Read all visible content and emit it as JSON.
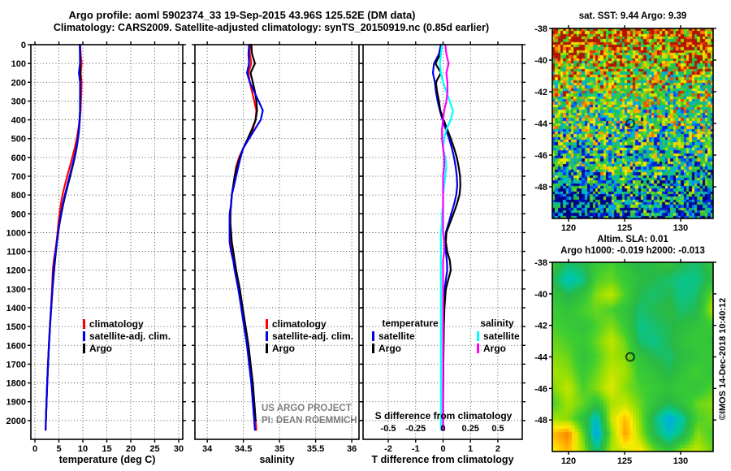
{
  "header": {
    "title_line1": "Argo profile: aoml 5902374_33 19-Sep-2015 43.96S 125.52E (DM data)",
    "title_line2": "Climatology: CARS2009. Satellite-adjusted climatology: synTS_20150919.nc (0.85d earlier)"
  },
  "colors": {
    "climatology": "#ff0000",
    "satellite_adj": "#0000ee",
    "argo": "#000000",
    "salinity_satellite": "#00ffff",
    "salinity_argo": "#ff00ff",
    "watermark": "#7d7d7d",
    "background": "#ffffff"
  },
  "watermark": {
    "line1": "US ARGO PROJECT",
    "line2": "PI: DEAN ROEMMICH"
  },
  "copyright": "©IMOS 14-Dec-2018 10:40:12",
  "legends": {
    "profile": [
      {
        "label": "climatology"
      },
      {
        "label": "satellite-adj. clim."
      },
      {
        "label": "Argo"
      }
    ],
    "difference": {
      "temperature_header": "temperature",
      "salinity_header": "salinity",
      "t_items": [
        {
          "label": "satellite"
        },
        {
          "label": "Argo"
        }
      ],
      "s_items": [
        {
          "label": "satellite"
        },
        {
          "label": "Argo"
        }
      ]
    }
  },
  "chart_data": [
    {
      "id": "temperature_profile",
      "type": "line",
      "xlabel": "temperature (deg C)",
      "x_range": [
        -0.85,
        30.85
      ],
      "x_ticks": [
        0,
        5,
        10,
        15,
        20,
        25,
        30
      ],
      "depth_range": [
        0,
        2100
      ],
      "depth_ticks": [
        0,
        100,
        200,
        300,
        400,
        500,
        600,
        700,
        800,
        900,
        1000,
        1100,
        1200,
        1300,
        1400,
        1500,
        1600,
        1700,
        1800,
        1900,
        2000
      ],
      "depths": [
        0,
        50,
        100,
        150,
        200,
        250,
        300,
        350,
        400,
        450,
        500,
        550,
        600,
        650,
        700,
        750,
        800,
        850,
        900,
        950,
        1000,
        1050,
        1100,
        1150,
        1200,
        1300,
        1400,
        1500,
        1600,
        1700,
        1800,
        1900,
        2000,
        2050
      ],
      "series": [
        {
          "name": "climatology",
          "color": "#ff0000",
          "values": [
            9.44,
            9.54,
            9.74,
            9.55,
            9.73,
            9.68,
            9.6,
            9.52,
            9.33,
            9.07,
            8.72,
            8.3,
            7.8,
            7.28,
            6.73,
            6.22,
            5.75,
            5.4,
            5.12,
            4.9,
            4.73,
            4.5,
            4.23,
            3.93,
            3.72,
            3.58,
            3.35,
            3.12,
            2.91,
            2.73,
            2.56,
            2.42,
            2.28,
            2.24
          ]
        },
        {
          "name": "Argo",
          "color": "#000000",
          "values": [
            9.39,
            9.44,
            9.46,
            9.47,
            9.47,
            9.46,
            9.45,
            9.42,
            9.35,
            9.22,
            9.0,
            8.7,
            8.3,
            7.85,
            7.35,
            6.85,
            6.35,
            5.9,
            5.5,
            5.15,
            4.85,
            4.6,
            4.38,
            4.18,
            4.0,
            3.68,
            3.4,
            3.15,
            2.93,
            2.74,
            2.57,
            2.42,
            2.28,
            null
          ]
        },
        {
          "name": "satellite-adj. clim.",
          "color": "#0000ee",
          "values": [
            9.36,
            9.39,
            9.41,
            9.18,
            9.43,
            9.42,
            9.4,
            9.4,
            9.31,
            9.17,
            8.94,
            8.62,
            8.2,
            7.74,
            7.23,
            6.74,
            6.23,
            5.8,
            5.42,
            5.1,
            4.83,
            4.58,
            4.33,
            4.07,
            3.87,
            3.64,
            3.38,
            3.14,
            2.92,
            2.74,
            2.56,
            2.42,
            2.28,
            2.24
          ]
        }
      ]
    },
    {
      "id": "salinity_profile",
      "type": "line",
      "xlabel": "salinity",
      "x_range": [
        33.83,
        36.1
      ],
      "x_ticks": [
        34,
        34.5,
        35,
        35.5,
        36
      ],
      "depth_range": [
        0,
        2100
      ],
      "depth_ticks": [
        0,
        100,
        200,
        300,
        400,
        500,
        600,
        700,
        800,
        900,
        1000,
        1100,
        1200,
        1300,
        1400,
        1500,
        1600,
        1700,
        1800,
        1900,
        2000
      ],
      "depths": [
        0,
        50,
        100,
        150,
        200,
        250,
        300,
        350,
        400,
        450,
        500,
        550,
        600,
        650,
        700,
        750,
        800,
        850,
        900,
        950,
        1000,
        1050,
        1100,
        1150,
        1200,
        1300,
        1400,
        1500,
        1600,
        1700,
        1800,
        1900,
        2000,
        2050
      ],
      "series": [
        {
          "name": "climatology",
          "color": "#ff0000",
          "values": [
            34.59,
            34.59,
            34.61,
            34.57,
            34.59,
            34.62,
            34.65,
            34.68,
            34.67,
            34.63,
            34.57,
            34.5,
            34.44,
            34.4,
            34.38,
            34.36,
            34.34,
            34.33,
            34.32,
            34.32,
            34.33,
            34.33,
            34.35,
            34.38,
            34.4,
            34.45,
            34.49,
            34.53,
            34.57,
            34.6,
            34.63,
            34.65,
            34.67,
            34.68
          ]
        },
        {
          "name": "Argo",
          "color": "#000000",
          "values": [
            34.61,
            34.62,
            34.66,
            34.6,
            34.63,
            34.66,
            34.68,
            34.69,
            34.67,
            34.62,
            34.56,
            34.5,
            34.45,
            34.41,
            34.38,
            34.36,
            34.34,
            34.33,
            34.32,
            34.32,
            34.33,
            34.34,
            34.36,
            34.38,
            34.4,
            34.45,
            34.49,
            34.53,
            34.57,
            34.6,
            34.63,
            34.65,
            34.67,
            null
          ]
        },
        {
          "name": "satellite-adj. clim.",
          "color": "#0000ee",
          "values": [
            34.58,
            34.57,
            34.58,
            34.55,
            34.59,
            34.65,
            34.71,
            34.77,
            34.74,
            34.66,
            34.58,
            34.5,
            34.46,
            34.43,
            34.4,
            34.37,
            34.34,
            34.33,
            34.31,
            34.31,
            34.31,
            34.31,
            34.33,
            34.36,
            34.38,
            34.43,
            34.47,
            34.51,
            34.55,
            34.58,
            34.61,
            34.63,
            34.65,
            34.66
          ]
        }
      ]
    },
    {
      "id": "difference_profile",
      "type": "line",
      "xlabel": "T difference from climatology",
      "x_range": [
        -2.92,
        2.89
      ],
      "x_ticks": [
        -2,
        -1,
        0,
        1,
        2
      ],
      "s_scale": {
        "label": "S difference from climatology",
        "ticks": [
          -0.5,
          -0.25,
          0,
          0.25,
          0.5
        ],
        "t_units_per_s_unit": 4
      },
      "depth_range": [
        0,
        2100
      ],
      "depth_ticks": [
        0,
        100,
        200,
        300,
        400,
        500,
        600,
        700,
        800,
        900,
        1000,
        1100,
        1200,
        1300,
        1400,
        1500,
        1600,
        1700,
        1800,
        1900,
        2000
      ],
      "depths": [
        0,
        50,
        100,
        150,
        200,
        250,
        300,
        350,
        400,
        450,
        500,
        550,
        600,
        650,
        700,
        750,
        800,
        850,
        900,
        950,
        1000,
        1050,
        1100,
        1150,
        1200,
        1300,
        1400,
        1500,
        1600,
        1700,
        1800,
        1900,
        2000,
        2050
      ],
      "series": [
        {
          "name": "temperature satellite",
          "color": "#0000ee",
          "scale": 1,
          "values": [
            -0.08,
            -0.15,
            -0.33,
            -0.37,
            -0.3,
            -0.26,
            -0.2,
            -0.12,
            -0.02,
            0.1,
            0.22,
            0.32,
            0.4,
            0.46,
            0.5,
            0.52,
            0.48,
            0.4,
            0.3,
            0.2,
            0.1,
            0.08,
            0.1,
            0.14,
            0.15,
            0.06,
            0.03,
            0.02,
            0.01,
            0.01,
            0.0,
            0.0,
            0.0,
            0.0
          ]
        },
        {
          "name": "temperature Argo",
          "color": "#000000",
          "scale": 1,
          "values": [
            -0.05,
            -0.1,
            -0.28,
            -0.08,
            -0.26,
            -0.22,
            -0.15,
            -0.1,
            0.02,
            0.15,
            0.28,
            0.4,
            0.5,
            0.57,
            0.62,
            0.63,
            0.6,
            0.5,
            0.38,
            0.25,
            0.12,
            0.1,
            0.15,
            0.25,
            0.28,
            0.1,
            0.05,
            0.03,
            0.02,
            0.01,
            0.01,
            0.0,
            0.0,
            null
          ]
        },
        {
          "name": "salinity satellite",
          "color": "#00ffff",
          "scale": 4,
          "values": [
            -0.01,
            -0.02,
            -0.03,
            -0.02,
            0.0,
            0.03,
            0.06,
            0.09,
            0.07,
            0.03,
            0.01,
            0.0,
            0.02,
            0.03,
            0.02,
            0.01,
            0.0,
            0.0,
            -0.01,
            -0.01,
            -0.02,
            -0.02,
            -0.02,
            -0.02,
            -0.02,
            -0.02,
            -0.02,
            -0.02,
            -0.02,
            -0.02,
            -0.02,
            -0.02,
            -0.02,
            -0.02
          ]
        },
        {
          "name": "salinity Argo",
          "color": "#ff00ff",
          "scale": 4,
          "values": [
            0.02,
            0.03,
            0.05,
            0.03,
            0.04,
            0.04,
            0.03,
            0.01,
            0.0,
            -0.01,
            -0.01,
            0.0,
            0.01,
            0.01,
            0.0,
            0.0,
            0.0,
            0.0,
            0.0,
            0.0,
            0.0,
            0.01,
            0.01,
            0.0,
            0.0,
            0.0,
            0.0,
            0.0,
            0.0,
            0.0,
            0.0,
            0.0,
            0.0,
            0.0
          ]
        }
      ]
    },
    {
      "id": "sst_map",
      "type": "heatmap",
      "title": "sat. SST: 9.44 Argo: 9.39",
      "lon_range": [
        118.55,
        132.9
      ],
      "lat_range": [
        -38,
        -50
      ],
      "lon_ticks": [
        120,
        125,
        130
      ],
      "lat_ticks": [
        -38,
        -40,
        -42,
        -44,
        -46,
        -48
      ],
      "value_range": [
        5.2,
        14.2
      ],
      "units": "deg C",
      "marker": {
        "lon": 125.5,
        "lat": -44
      },
      "grid": [
        [
          12.8,
          13.6,
          13.2,
          12.6,
          13.0,
          13.4,
          12.9,
          12.5,
          12.8,
          13.3,
          13.7,
          12.8
        ],
        [
          13.4,
          14.0,
          13.5,
          12.5,
          12.9,
          12.5,
          12.1,
          12.3,
          12.7,
          13.2,
          13.8,
          12.4
        ],
        [
          12.1,
          12.6,
          12.1,
          11.7,
          12.1,
          12.4,
          11.9,
          11.5,
          11.9,
          12.2,
          12.7,
          11.9
        ],
        [
          11.1,
          11.5,
          10.9,
          11.3,
          11.6,
          11.2,
          10.9,
          11.3,
          10.7,
          11.1,
          11.5,
          11.0
        ],
        [
          10.3,
          10.7,
          10.1,
          10.5,
          10.3,
          10.6,
          10.2,
          10.6,
          10.1,
          10.5,
          10.7,
          10.3
        ],
        [
          9.7,
          10.1,
          9.9,
          9.7,
          9.9,
          10.1,
          9.7,
          10.2,
          9.9,
          10.4,
          10.2,
          9.9
        ],
        [
          9.5,
          9.7,
          9.5,
          9.6,
          9.4,
          9.6,
          9.4,
          9.8,
          9.6,
          10.0,
          9.8,
          9.5
        ],
        [
          9.2,
          9.5,
          9.1,
          9.4,
          9.2,
          9.5,
          9.2,
          9.4,
          9.1,
          9.4,
          9.6,
          9.2
        ],
        [
          8.9,
          9.2,
          9.0,
          8.8,
          9.2,
          9.0,
          9.2,
          9.0,
          8.8,
          9.0,
          9.2,
          8.8
        ],
        [
          8.3,
          8.7,
          8.9,
          9.0,
          8.8,
          9.0,
          8.8,
          9.0,
          8.6,
          8.8,
          8.5,
          8.1
        ],
        [
          7.5,
          7.1,
          7.7,
          8.5,
          8.6,
          8.8,
          8.6,
          8.4,
          8.2,
          8.0,
          7.7,
          6.6
        ],
        [
          6.9,
          5.9,
          5.5,
          7.1,
          7.9,
          8.2,
          8.0,
          7.8,
          7.6,
          7.4,
          7.1,
          6.2
        ],
        [
          7.3,
          5.7,
          6.3,
          7.5,
          7.7,
          7.3,
          7.9,
          7.5,
          7.1,
          7.7,
          6.7,
          6.9
        ]
      ]
    },
    {
      "id": "sla_map",
      "type": "heatmap",
      "title": "Altim. SLA: 0.01",
      "subtitle": "Argo h1000: -0.019 h2000: -0.013",
      "lon_range": [
        118.55,
        132.9
      ],
      "lat_range": [
        -38,
        -50
      ],
      "lon_ticks": [
        120,
        125,
        130
      ],
      "lat_ticks": [
        -38,
        -40,
        -42,
        -44,
        -46,
        -48
      ],
      "value_range": [
        -0.16,
        0.16
      ],
      "units": "m",
      "marker": {
        "lon": 125.5,
        "lat": -44
      },
      "grid": [
        [
          0.0,
          -0.03,
          -0.02,
          0.01,
          0.02,
          0.0,
          -0.02,
          -0.01,
          0.0,
          -0.02,
          -0.03,
          0.0
        ],
        [
          -0.02,
          -0.06,
          -0.04,
          0.02,
          0.03,
          0.01,
          -0.01,
          -0.02,
          -0.03,
          -0.04,
          -0.04,
          -0.01
        ],
        [
          0.0,
          -0.02,
          0.0,
          0.04,
          0.06,
          0.02,
          -0.02,
          -0.03,
          -0.02,
          -0.04,
          -0.03,
          0.03
        ],
        [
          0.01,
          0.0,
          0.02,
          0.03,
          0.02,
          0.0,
          -0.03,
          -0.02,
          -0.01,
          -0.03,
          -0.02,
          0.05
        ],
        [
          0.02,
          0.01,
          0.0,
          0.02,
          0.04,
          0.01,
          -0.04,
          -0.03,
          -0.02,
          -0.01,
          0.0,
          0.01
        ],
        [
          0.03,
          0.02,
          0.01,
          0.03,
          0.06,
          0.03,
          -0.03,
          -0.04,
          -0.02,
          0.0,
          0.01,
          0.0
        ],
        [
          0.04,
          0.03,
          0.0,
          0.02,
          0.05,
          0.04,
          0.0,
          -0.02,
          -0.03,
          -0.01,
          0.0,
          0.01
        ],
        [
          0.05,
          0.04,
          0.01,
          0.03,
          0.06,
          0.05,
          0.01,
          0.0,
          -0.02,
          0.0,
          0.02,
          0.0
        ],
        [
          0.04,
          0.06,
          0.02,
          0.04,
          0.07,
          0.04,
          0.02,
          0.01,
          0.0,
          0.01,
          0.0,
          0.02
        ],
        [
          0.02,
          0.05,
          0.03,
          0.0,
          0.05,
          0.06,
          0.03,
          0.0,
          -0.02,
          0.0,
          0.03,
          0.04
        ],
        [
          0.05,
          0.04,
          0.0,
          -0.07,
          0.06,
          0.1,
          0.04,
          -0.03,
          -0.08,
          -0.05,
          0.02,
          0.03
        ],
        [
          0.1,
          0.12,
          0.03,
          -0.09,
          0.04,
          0.11,
          0.05,
          -0.02,
          -0.06,
          -0.03,
          0.04,
          0.02
        ],
        [
          0.08,
          0.1,
          0.05,
          -0.04,
          0.05,
          0.07,
          0.08,
          0.03,
          0.0,
          0.04,
          0.06,
          0.03
        ]
      ]
    }
  ]
}
